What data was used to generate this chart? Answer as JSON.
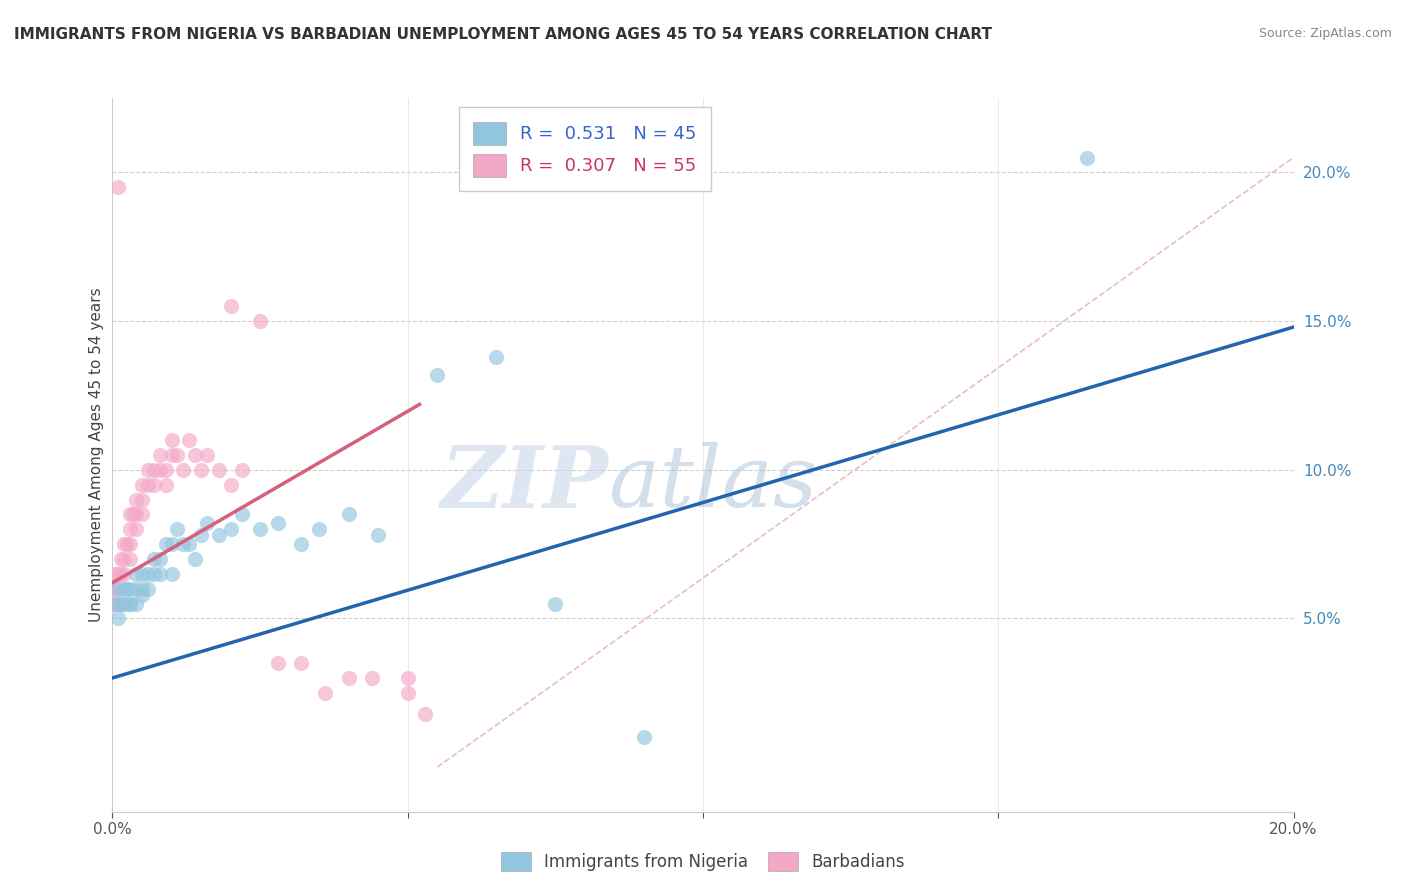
{
  "title": "IMMIGRANTS FROM NIGERIA VS BARBADIAN UNEMPLOYMENT AMONG AGES 45 TO 54 YEARS CORRELATION CHART",
  "source": "Source: ZipAtlas.com",
  "ylabel": "Unemployment Among Ages 45 to 54 years",
  "right_yticks": [
    "20.0%",
    "15.0%",
    "10.0%",
    "5.0%"
  ],
  "right_ytick_vals": [
    0.2,
    0.15,
    0.1,
    0.05
  ],
  "xlim": [
    0.0,
    0.2
  ],
  "ylim": [
    -0.015,
    0.225
  ],
  "legend_blue_r": "0.531",
  "legend_blue_n": "45",
  "legend_pink_r": "0.307",
  "legend_pink_n": "55",
  "legend_blue_label": "Immigrants from Nigeria",
  "legend_pink_label": "Barbadians",
  "blue_color": "#92c5de",
  "pink_color": "#f4a8c7",
  "blue_line_color": "#2166ac",
  "pink_line_color": "#d6607a",
  "dashed_line_color": "#e8b4c0",
  "watermark_zip": "ZIP",
  "watermark_atlas": "atlas",
  "blue_scatter_x": [
    0.0005,
    0.001,
    0.001,
    0.0015,
    0.002,
    0.002,
    0.0025,
    0.003,
    0.003,
    0.003,
    0.004,
    0.004,
    0.004,
    0.005,
    0.005,
    0.005,
    0.006,
    0.006,
    0.007,
    0.007,
    0.008,
    0.008,
    0.009,
    0.01,
    0.01,
    0.011,
    0.012,
    0.013,
    0.014,
    0.015,
    0.016,
    0.018,
    0.02,
    0.022,
    0.025,
    0.028,
    0.032,
    0.035,
    0.04,
    0.045,
    0.055,
    0.065,
    0.075,
    0.09,
    0.165
  ],
  "blue_scatter_y": [
    0.055,
    0.05,
    0.06,
    0.055,
    0.055,
    0.06,
    0.06,
    0.055,
    0.055,
    0.06,
    0.055,
    0.06,
    0.065,
    0.058,
    0.06,
    0.065,
    0.06,
    0.065,
    0.065,
    0.07,
    0.065,
    0.07,
    0.075,
    0.065,
    0.075,
    0.08,
    0.075,
    0.075,
    0.07,
    0.078,
    0.082,
    0.078,
    0.08,
    0.085,
    0.08,
    0.082,
    0.075,
    0.08,
    0.085,
    0.078,
    0.132,
    0.138,
    0.055,
    0.01,
    0.205
  ],
  "pink_scatter_x": [
    0.0002,
    0.0003,
    0.0005,
    0.0005,
    0.001,
    0.001,
    0.001,
    0.0015,
    0.0015,
    0.002,
    0.002,
    0.002,
    0.002,
    0.0025,
    0.003,
    0.003,
    0.003,
    0.003,
    0.0035,
    0.004,
    0.004,
    0.004,
    0.005,
    0.005,
    0.005,
    0.006,
    0.006,
    0.007,
    0.007,
    0.008,
    0.008,
    0.009,
    0.009,
    0.01,
    0.01,
    0.011,
    0.012,
    0.013,
    0.014,
    0.015,
    0.016,
    0.018,
    0.02,
    0.022,
    0.025,
    0.028,
    0.032,
    0.036,
    0.04,
    0.044,
    0.05,
    0.05,
    0.053,
    0.02,
    0.001
  ],
  "pink_scatter_y": [
    0.055,
    0.06,
    0.055,
    0.065,
    0.06,
    0.055,
    0.065,
    0.065,
    0.07,
    0.055,
    0.065,
    0.07,
    0.075,
    0.075,
    0.07,
    0.075,
    0.08,
    0.085,
    0.085,
    0.08,
    0.085,
    0.09,
    0.09,
    0.085,
    0.095,
    0.095,
    0.1,
    0.095,
    0.1,
    0.1,
    0.105,
    0.1,
    0.095,
    0.105,
    0.11,
    0.105,
    0.1,
    0.11,
    0.105,
    0.1,
    0.105,
    0.1,
    0.095,
    0.1,
    0.15,
    0.035,
    0.035,
    0.025,
    0.03,
    0.03,
    0.025,
    0.03,
    0.018,
    0.155,
    0.195
  ],
  "blue_line_x": [
    0.0,
    0.2
  ],
  "blue_line_y": [
    0.03,
    0.148
  ],
  "pink_line_x": [
    0.0,
    0.052
  ],
  "pink_line_y": [
    0.062,
    0.122
  ],
  "dashed_line_x": [
    0.055,
    0.2
  ],
  "dashed_line_y": [
    0.0,
    0.205
  ]
}
